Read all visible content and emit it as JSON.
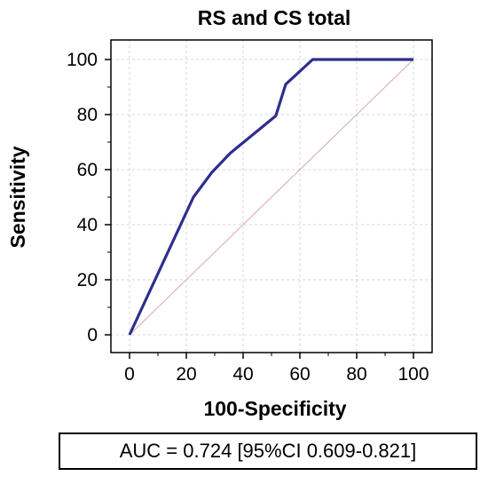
{
  "chart_data": {
    "type": "line",
    "title": "RS and CS total",
    "xlabel": "100-Specificity",
    "ylabel": "Sensitivity",
    "xlim": [
      0,
      100
    ],
    "ylim": [
      0,
      100
    ],
    "xticks": [
      0,
      20,
      40,
      60,
      80,
      100
    ],
    "yticks": [
      0,
      20,
      40,
      60,
      80,
      100
    ],
    "grid": true,
    "series": [
      {
        "color": "#2e2e8f",
        "x": [
          0,
          22.5,
          29,
          35.5,
          51.5,
          55,
          64.5,
          100
        ],
        "y": [
          0,
          50,
          59,
          66,
          79.5,
          91,
          100,
          100
        ]
      },
      {
        "color": "#d9a8ad",
        "x": [
          0,
          100
        ],
        "y": [
          0,
          100
        ]
      }
    ],
    "annotation": "AUC = 0.724 [95%CI 0.609-0.821]"
  }
}
